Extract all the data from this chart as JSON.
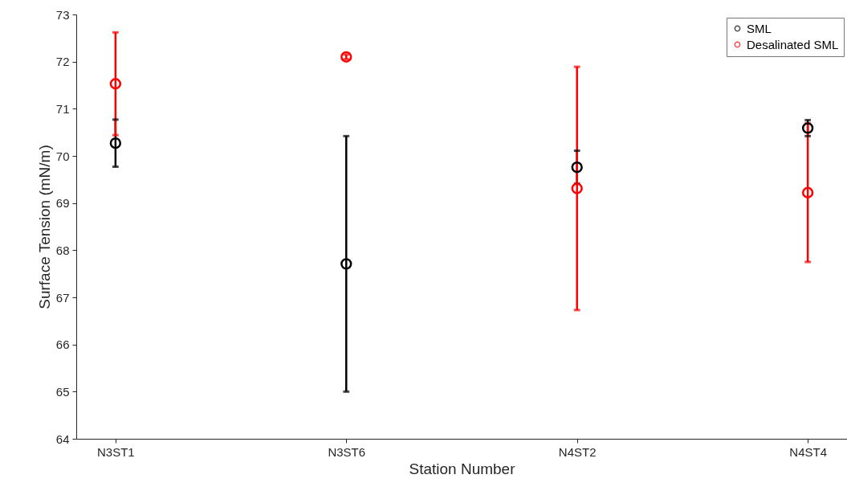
{
  "chart_data": {
    "type": "scatter",
    "xlabel": "Station Number",
    "ylabel": "Surface Tension (mN/m)",
    "categories": [
      "N3ST1",
      "N3ST6",
      "N4ST2",
      "N4ST4"
    ],
    "ylim": [
      64,
      73
    ],
    "yticks": [
      64,
      65,
      66,
      67,
      68,
      69,
      70,
      71,
      72,
      73
    ],
    "grid": false,
    "legend": "top right",
    "marker": "circle",
    "series": [
      {
        "name": "SML",
        "color": "#000000",
        "values": [
          70.27,
          67.71,
          69.76,
          70.59
        ],
        "errors": [
          0.5,
          2.71,
          0.35,
          0.17
        ]
      },
      {
        "name": "Desalinated SML",
        "color": "#ff0000",
        "values": [
          71.53,
          72.1,
          69.31,
          69.22
        ],
        "errors": [
          1.09,
          0.05,
          2.58,
          1.47
        ]
      }
    ]
  }
}
